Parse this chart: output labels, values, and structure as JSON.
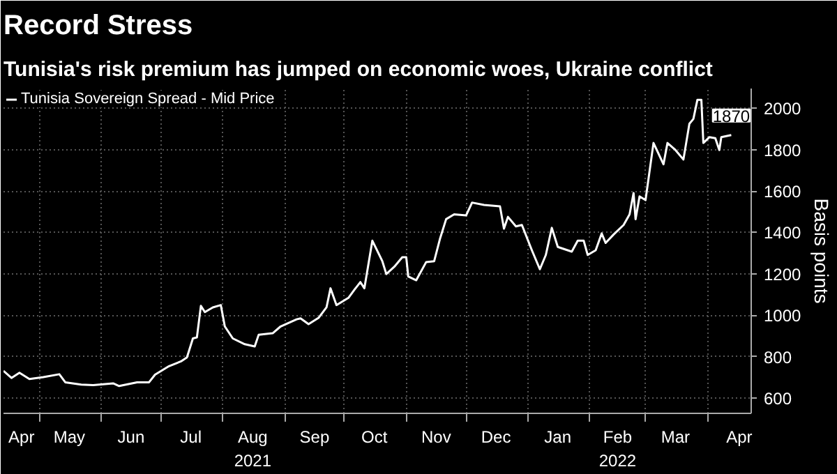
{
  "chart_data": {
    "type": "line",
    "title": "Record Stress",
    "subtitle": "Tunisia's risk premium has jumped on economic woes, Ukraine conflict",
    "ylabel": "Basis points",
    "x": [
      "2021-04-13",
      "2021-04-17",
      "2021-04-21",
      "2021-04-26",
      "2021-05-03",
      "2021-05-11",
      "2021-05-14",
      "2021-05-22",
      "2021-05-28",
      "2021-06-07",
      "2021-06-10",
      "2021-06-19",
      "2021-06-25",
      "2021-06-28",
      "2021-07-05",
      "2021-07-11",
      "2021-07-14",
      "2021-07-17",
      "2021-07-19",
      "2021-07-21",
      "2021-07-23",
      "2021-07-27",
      "2021-07-31",
      "2021-08-02",
      "2021-08-06",
      "2021-08-12",
      "2021-08-17",
      "2021-08-19",
      "2021-08-26",
      "2021-08-30",
      "2021-09-07",
      "2021-09-09",
      "2021-09-13",
      "2021-09-18",
      "2021-09-22",
      "2021-09-24",
      "2021-09-27",
      "2021-10-03",
      "2021-10-06",
      "2021-10-09",
      "2021-10-11",
      "2021-10-15",
      "2021-10-20",
      "2021-10-22",
      "2021-10-26",
      "2021-10-30",
      "2021-11-01",
      "2021-11-02",
      "2021-11-06",
      "2021-11-11",
      "2021-11-15",
      "2021-11-18",
      "2021-11-21",
      "2021-11-25",
      "2021-12-01",
      "2021-12-04",
      "2021-12-10",
      "2021-12-18",
      "2021-12-20",
      "2021-12-22",
      "2021-12-26",
      "2021-12-29",
      "2022-01-03",
      "2022-01-07",
      "2022-01-10",
      "2022-01-13",
      "2022-01-16",
      "2022-01-23",
      "2022-01-26",
      "2022-01-29",
      "2022-01-31",
      "2022-02-04",
      "2022-02-07",
      "2022-02-09",
      "2022-02-13",
      "2022-02-18",
      "2022-02-21",
      "2022-02-23",
      "2022-02-24",
      "2022-02-26",
      "2022-03-01",
      "2022-03-05",
      "2022-03-10",
      "2022-03-12",
      "2022-03-16",
      "2022-03-20",
      "2022-03-23",
      "2022-03-25",
      "2022-03-27",
      "2022-03-29",
      "2022-03-30",
      "2022-04-02",
      "2022-04-05",
      "2022-04-07",
      "2022-04-08",
      "2022-04-13"
    ],
    "series": [
      {
        "name": "Tunisia Sovereign Spread - Mid Price",
        "color": "#ffffff",
        "values": [
          731,
          697,
          722,
          692,
          701,
          715,
          676,
          665,
          662,
          671,
          658,
          676,
          676,
          713,
          754,
          777,
          796,
          888,
          893,
          1045,
          1015,
          1038,
          1049,
          946,
          888,
          860,
          849,
          906,
          913,
          946,
          980,
          985,
          957,
          987,
          1038,
          1130,
          1049,
          1084,
          1123,
          1160,
          1130,
          1360,
          1261,
          1199,
          1234,
          1280,
          1280,
          1187,
          1169,
          1257,
          1261,
          1372,
          1464,
          1487,
          1482,
          1544,
          1533,
          1526,
          1418,
          1475,
          1429,
          1436,
          1314,
          1222,
          1291,
          1422,
          1330,
          1307,
          1360,
          1360,
          1291,
          1314,
          1395,
          1349,
          1390,
          1436,
          1487,
          1590,
          1464,
          1574,
          1556,
          1832,
          1729,
          1832,
          1798,
          1752,
          1925,
          1948,
          2040,
          2040,
          1832,
          1860,
          1855,
          1798,
          1860,
          1870
        ]
      }
    ],
    "xlim": [
      "2021-04-13",
      "2022-04-23"
    ],
    "xticks": [
      {
        "value": "2021-04-22",
        "label": "Apr"
      },
      {
        "value": "2021-05-01",
        "label": null
      },
      {
        "value": "2021-05-16",
        "label": "May"
      },
      {
        "value": "2021-06-01",
        "label": null
      },
      {
        "value": "2021-06-16",
        "label": "Jun"
      },
      {
        "value": "2021-07-01",
        "label": null
      },
      {
        "value": "2021-07-16",
        "label": "Jul"
      },
      {
        "value": "2021-08-01",
        "label": null
      },
      {
        "value": "2021-08-16",
        "label": "Aug\n2021"
      },
      {
        "value": "2021-09-01",
        "label": null
      },
      {
        "value": "2021-09-16",
        "label": "Sep"
      },
      {
        "value": "2021-10-01",
        "label": null
      },
      {
        "value": "2021-10-16",
        "label": "Oct"
      },
      {
        "value": "2021-11-01",
        "label": null
      },
      {
        "value": "2021-11-16",
        "label": "Nov"
      },
      {
        "value": "2021-12-01",
        "label": null
      },
      {
        "value": "2021-12-16",
        "label": "Dec"
      },
      {
        "value": "2022-01-01",
        "label": null
      },
      {
        "value": "2022-01-16",
        "label": "Jan"
      },
      {
        "value": "2022-02-01",
        "label": null
      },
      {
        "value": "2022-02-15",
        "label": "Feb\n2022"
      },
      {
        "value": "2022-03-01",
        "label": null
      },
      {
        "value": "2022-03-16",
        "label": "Mar"
      },
      {
        "value": "2022-04-01",
        "label": null
      },
      {
        "value": "2022-04-17",
        "label": "Apr"
      }
    ],
    "ylim": [
      526,
      2095
    ],
    "yticks": [
      600,
      800,
      1000,
      1200,
      1400,
      1600,
      1800,
      2000
    ],
    "grid": true,
    "legend": "top left",
    "line_style": "solid",
    "annotations": [
      {
        "text": "1870",
        "x": "2022-04-13",
        "y": 1870
      }
    ]
  }
}
